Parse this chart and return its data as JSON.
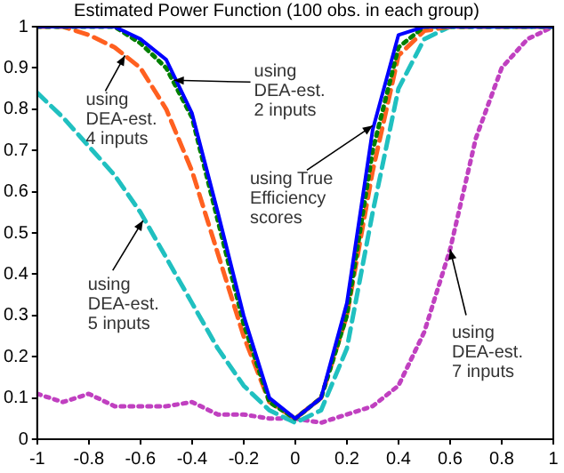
{
  "chart_data": {
    "type": "line",
    "title": "Estimated Power Function (100 obs. in each group)",
    "x": [
      -1,
      -0.9,
      -0.8,
      -0.7,
      -0.6,
      -0.5,
      -0.4,
      -0.3,
      -0.2,
      -0.1,
      0,
      0.1,
      0.2,
      0.3,
      0.4,
      0.5,
      0.6,
      0.7,
      0.8,
      0.9,
      1
    ],
    "series": [
      {
        "color": "#0000ff",
        "line_style": "solid",
        "values": [
          1,
          1,
          1,
          1,
          0.97,
          0.92,
          0.79,
          0.55,
          0.3,
          0.1,
          0.05,
          0.1,
          0.33,
          0.75,
          0.98,
          1,
          1,
          1,
          1,
          1,
          1
        ]
      },
      {
        "color": "#007f00",
        "line_style": "dotted",
        "values": [
          1,
          1,
          1,
          1,
          0.96,
          0.9,
          0.78,
          0.53,
          0.28,
          0.09,
          0.05,
          0.1,
          0.3,
          0.7,
          0.95,
          1,
          1,
          1,
          1,
          1,
          1
        ]
      },
      {
        "color": "#ff6020",
        "line_style": "dashed",
        "values": [
          1,
          1,
          0.98,
          0.95,
          0.9,
          0.8,
          0.65,
          0.45,
          0.25,
          0.09,
          0.05,
          0.1,
          0.3,
          0.65,
          0.93,
          0.99,
          1,
          1,
          1,
          1,
          1
        ]
      },
      {
        "color": "#20c0c0",
        "line_style": "dashed",
        "values": [
          0.84,
          0.78,
          0.71,
          0.64,
          0.55,
          0.44,
          0.33,
          0.22,
          0.13,
          0.07,
          0.04,
          0.07,
          0.22,
          0.55,
          0.85,
          0.97,
          1,
          1,
          1,
          1,
          1
        ]
      },
      {
        "color": "#c040c0",
        "line_style": "dotted",
        "values": [
          0.11,
          0.09,
          0.11,
          0.08,
          0.08,
          0.08,
          0.09,
          0.06,
          0.06,
          0.05,
          0.05,
          0.04,
          0.06,
          0.08,
          0.13,
          0.26,
          0.46,
          0.73,
          0.9,
          0.97,
          1
        ]
      }
    ],
    "xlim": [
      -1,
      1
    ],
    "xticks": [
      -1,
      -0.8,
      -0.6,
      -0.4,
      -0.2,
      0,
      0.2,
      0.4,
      0.6,
      0.8,
      1
    ],
    "ylim": [
      0,
      1
    ],
    "yticks": [
      0,
      0.1,
      0.2,
      0.3,
      0.4,
      0.5,
      0.6,
      0.7,
      0.8,
      0.9,
      1
    ],
    "grid": false,
    "legend": false,
    "marker": "none",
    "annotations": [
      {
        "text": "using\nDEA-est.\n2 inputs",
        "x": -0.47,
        "y": 0.87
      },
      {
        "text": "using\nDEA-est.\n4 inputs",
        "x": -0.66,
        "y": 0.93
      },
      {
        "text": "using True\nEfficiency\nscores",
        "x": 0.3,
        "y": 0.76
      },
      {
        "text": "using\nDEA-est.\n5 inputs",
        "x": -0.59,
        "y": 0.53
      },
      {
        "text": "using\nDEA-est.\n7 inputs",
        "x": 0.6,
        "y": 0.46
      }
    ]
  }
}
